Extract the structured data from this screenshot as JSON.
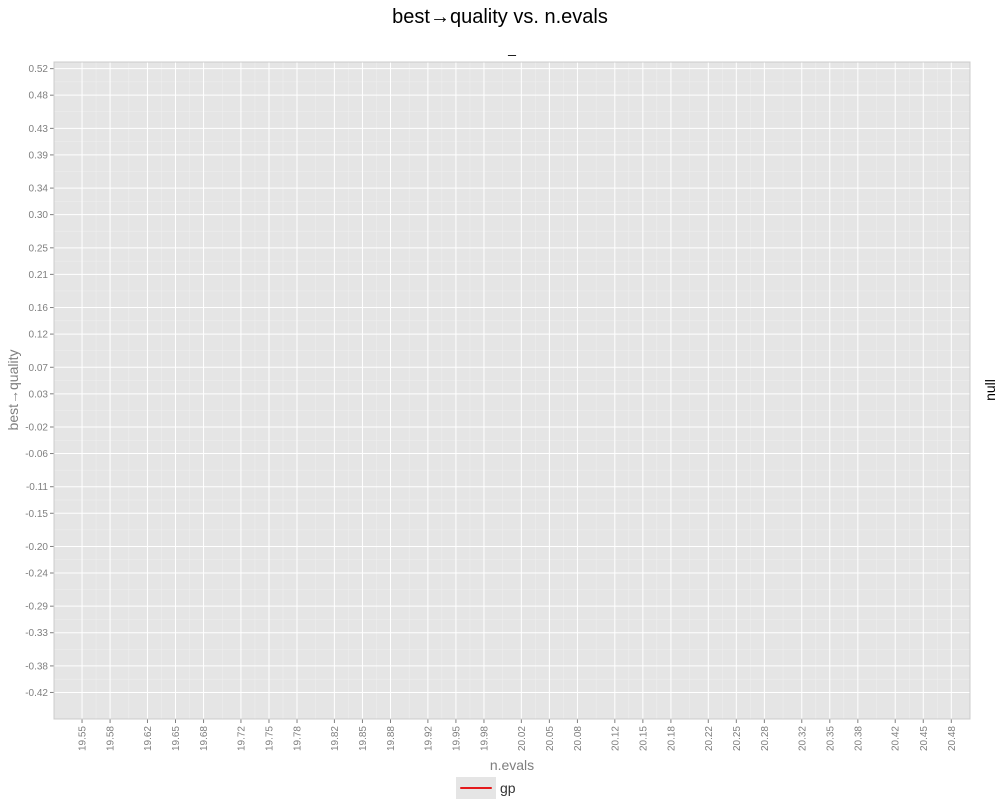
{
  "chart_data": {
    "type": "line",
    "title": "best→quality vs. n.evals",
    "facet_label": "_",
    "strip_label": "null",
    "xlabel": "n.evals",
    "ylabel": "best→quality",
    "xlim": [
      19.52,
      20.5
    ],
    "ylim": [
      -0.46,
      0.53
    ],
    "x_ticks": [
      "19.55",
      "19.58",
      "19.62",
      "19.65",
      "19.68",
      "19.72",
      "19.75",
      "19.78",
      "19.82",
      "19.85",
      "19.88",
      "19.92",
      "19.95",
      "19.98",
      "20.02",
      "20.05",
      "20.08",
      "20.12",
      "20.15",
      "20.18",
      "20.22",
      "20.25",
      "20.28",
      "20.32",
      "20.35",
      "20.38",
      "20.42",
      "20.45",
      "20.48"
    ],
    "y_ticks": [
      "0.52",
      "0.48",
      "0.43",
      "0.39",
      "0.34",
      "0.30",
      "0.25",
      "0.21",
      "0.16",
      "0.12",
      "0.07",
      "0.03",
      "-0.02",
      "-0.06",
      "-0.11",
      "-0.15",
      "-0.20",
      "-0.24",
      "-0.29",
      "-0.33",
      "-0.38",
      "-0.42"
    ],
    "grid": true,
    "panel_color": "#e5e5e5",
    "legend_position": "bottom",
    "series": [
      {
        "name": "gp",
        "color": "#e41a1c",
        "x": [],
        "y": []
      }
    ]
  }
}
